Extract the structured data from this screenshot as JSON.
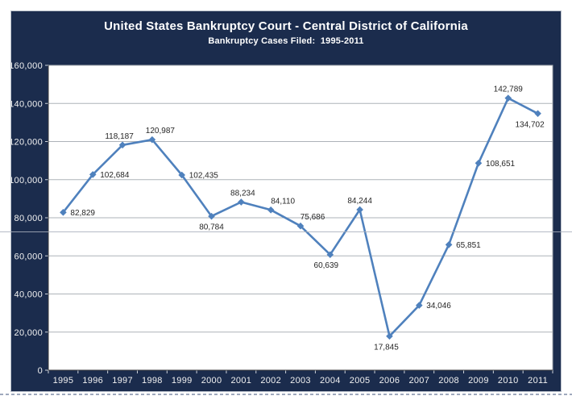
{
  "header": {},
  "colors": {
    "chart_background": "#1b2c4d",
    "plot_background": "#ffffff",
    "line": "#4f81bd",
    "marker": "#4f81bd",
    "gridline": "#aeb3b9",
    "plot_border": "#a6abb1",
    "axis_line": "#3a3a3a",
    "tick": "#cfd4dc",
    "axis_label": "#f2f2f2",
    "data_label": "#262626"
  },
  "chart_data": {
    "type": "line",
    "title": "United States Bankruptcy Court - Central District of California",
    "subtitle": "Bankruptcy Cases Filed:  1995-2011",
    "x": [
      "1995",
      "1996",
      "1997",
      "1998",
      "1999",
      "2000",
      "2001",
      "2002",
      "2003",
      "2004",
      "2005",
      "2006",
      "2007",
      "2008",
      "2009",
      "2010",
      "2011"
    ],
    "values": [
      82829,
      102684,
      118187,
      120987,
      102435,
      80784,
      88234,
      84110,
      75686,
      60639,
      84244,
      17845,
      34046,
      65851,
      108651,
      142789,
      134702
    ],
    "data_labels": [
      "82,829",
      "102,684",
      "118,187",
      "120,987",
      "102,435",
      "80,784",
      "88,234",
      "84,110",
      "75,686",
      "60,639",
      "84,244",
      "17,845",
      "34,046",
      "65,851",
      "108,651",
      "142,789",
      "134,702"
    ],
    "label_placements": [
      "right",
      "right",
      "above",
      "above",
      "right",
      "below",
      "above",
      "above",
      "above",
      "below",
      "above",
      "below",
      "right",
      "right",
      "right",
      "above",
      "below"
    ],
    "label_dx": [
      0,
      0,
      -4,
      10,
      0,
      0,
      2,
      15,
      15,
      -5,
      0,
      -4,
      0,
      0,
      0,
      0,
      -10
    ],
    "ylim": [
      0,
      160000
    ],
    "ytick_interval": 20000,
    "ytick_labels": [
      "0",
      "20,000",
      "40,000",
      "60,000",
      "80,000",
      "100,000",
      "120,000",
      "140,000",
      "160,000"
    ],
    "grid": "horizontal",
    "legend": "none",
    "marker_shape": "diamond"
  }
}
